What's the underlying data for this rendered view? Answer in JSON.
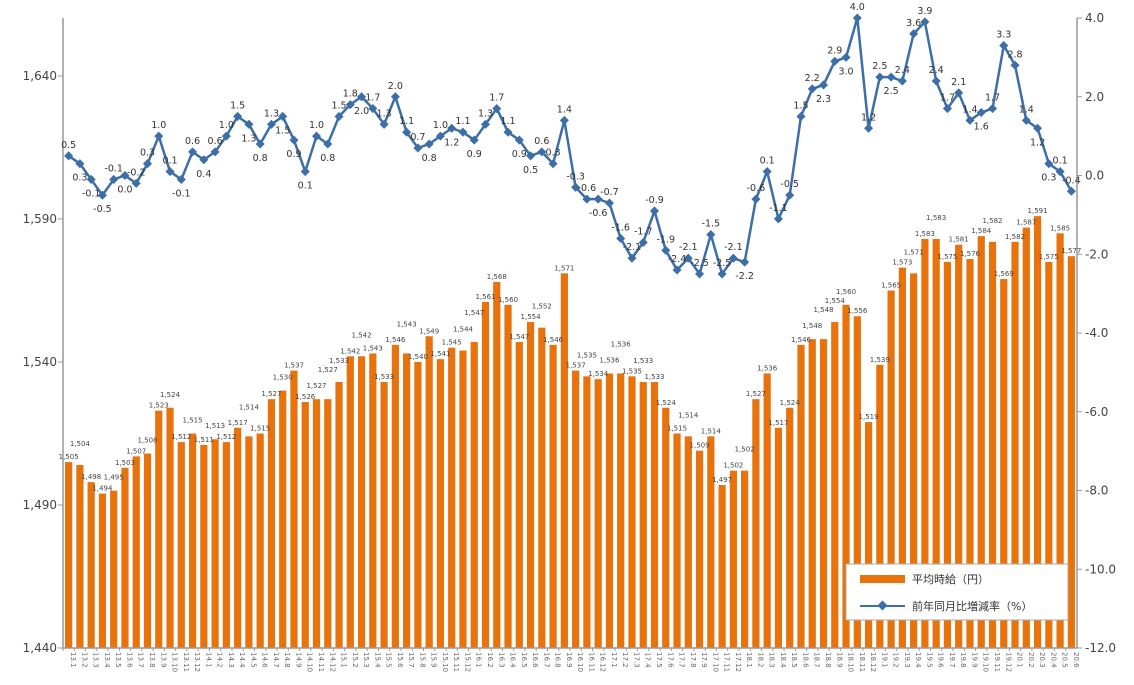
{
  "chart_data": {
    "type": "bar+line",
    "categories": [
      "13.1",
      "13.2",
      "13.3",
      "13.4",
      "13.5",
      "13.6",
      "13.7",
      "13.8",
      "13.9",
      "13.10",
      "13.11",
      "13.12",
      "14.1",
      "14.2",
      "14.3",
      "14.4",
      "14.5",
      "14.6",
      "14.7",
      "14.8",
      "14.9",
      "14.10",
      "14.11",
      "14.12",
      "15.1",
      "15.2",
      "15.3",
      "15.4",
      "15.5",
      "15.6",
      "15.7",
      "15.8",
      "15.9",
      "15.10",
      "15.11",
      "15.12",
      "16.1",
      "16.2",
      "16.3",
      "16.4",
      "16.5",
      "16.6",
      "16.7",
      "16.8",
      "16.9",
      "16.10",
      "16.11",
      "16.12",
      "17.1",
      "17.2",
      "17.3",
      "17.4",
      "17.5",
      "17.6",
      "17.7",
      "17.8",
      "17.9",
      "17.10",
      "17.11",
      "17.12",
      "18.1",
      "18.2",
      "18.3",
      "18.4",
      "18.5",
      "18.6",
      "18.7",
      "18.8",
      "18.9",
      "18.10",
      "18.11",
      "18.12",
      "19.1",
      "19.2",
      "19.3",
      "19.4",
      "19.5",
      "19.6",
      "19.7",
      "19.8",
      "19.9",
      "19.10",
      "19.11",
      "19.12",
      "20.1",
      "20.2",
      "20.3",
      "20.4",
      "20.5",
      "20.6"
    ],
    "series": [
      {
        "name": "平均時給（円）",
        "type": "bar",
        "axis": "left",
        "color": "#E8720C",
        "values": [
          1505,
          1504,
          1498,
          1494,
          1495,
          1503,
          1507,
          1508,
          1523,
          1524,
          1512,
          1515,
          1511,
          1513,
          1512,
          1517,
          1514,
          1515,
          1527,
          1530,
          1537,
          1526,
          1527,
          1527,
          1533,
          1542,
          1542,
          1543,
          1533,
          1546,
          1543,
          1540,
          1549,
          1541,
          1545,
          1544,
          1547,
          1561,
          1568,
          1560,
          1547,
          1554,
          1552,
          1546,
          1571,
          1537,
          1535,
          1534,
          1536,
          1536,
          1535,
          1533,
          1533,
          1524,
          1515,
          1514,
          1509,
          1514,
          1497,
          1502,
          1502,
          1527,
          1536,
          1517,
          1524,
          1546,
          1548,
          1548,
          1554,
          1560,
          1556,
          1519,
          1539,
          1565,
          1573,
          1571,
          1583,
          1583,
          1575,
          1581,
          1576,
          1584,
          1582,
          1569,
          1582,
          1587,
          1591,
          1575,
          1585,
          1577
        ]
      },
      {
        "name": "前年同月比増減率（%）",
        "type": "line",
        "axis": "right",
        "color": "#3C6EA8",
        "values": [
          0.5,
          0.3,
          -0.1,
          -0.5,
          -0.1,
          0.0,
          -0.2,
          0.3,
          1.0,
          0.1,
          -0.1,
          0.6,
          0.4,
          0.6,
          1.0,
          1.5,
          1.3,
          0.8,
          1.3,
          1.5,
          0.9,
          0.1,
          1.0,
          0.8,
          1.5,
          1.8,
          2.0,
          1.7,
          1.3,
          2.0,
          1.1,
          0.7,
          0.8,
          1.0,
          1.2,
          1.1,
          0.9,
          1.3,
          1.7,
          1.1,
          0.9,
          0.5,
          0.6,
          0.3,
          1.4,
          -0.3,
          -0.6,
          -0.6,
          -0.7,
          -1.6,
          -2.1,
          -1.7,
          -0.9,
          -1.9,
          -2.4,
          -2.1,
          -2.5,
          -1.5,
          -2.5,
          -2.1,
          -2.2,
          -0.6,
          0.1,
          -1.1,
          -0.5,
          1.5,
          2.2,
          2.3,
          2.9,
          3.0,
          4.0,
          1.2,
          2.5,
          2.5,
          2.4,
          3.6,
          3.9,
          2.4,
          1.7,
          2.1,
          1.4,
          1.6,
          1.7,
          3.3,
          2.8,
          1.4,
          1.2,
          0.3,
          0.1,
          -0.4
        ]
      }
    ],
    "left_axis": {
      "ylim": [
        1440,
        1640
      ],
      "ticks": [
        "1,440",
        "1,490",
        "1,540",
        "1,590",
        "1,640"
      ]
    },
    "right_axis": {
      "ylim": [
        -12.0,
        4.0
      ],
      "ticks": [
        "4.0",
        "2.0",
        "0.0",
        "-2.0",
        "-4.0",
        "-6.0",
        "-8.0",
        "-10.0",
        "-12.0"
      ]
    },
    "highlight_label_color": "#FF0000",
    "legend": {
      "placement": "bottom-right",
      "entries": [
        "平均時給（円）",
        "前年同月比増減率（%）"
      ]
    },
    "grid": false
  }
}
